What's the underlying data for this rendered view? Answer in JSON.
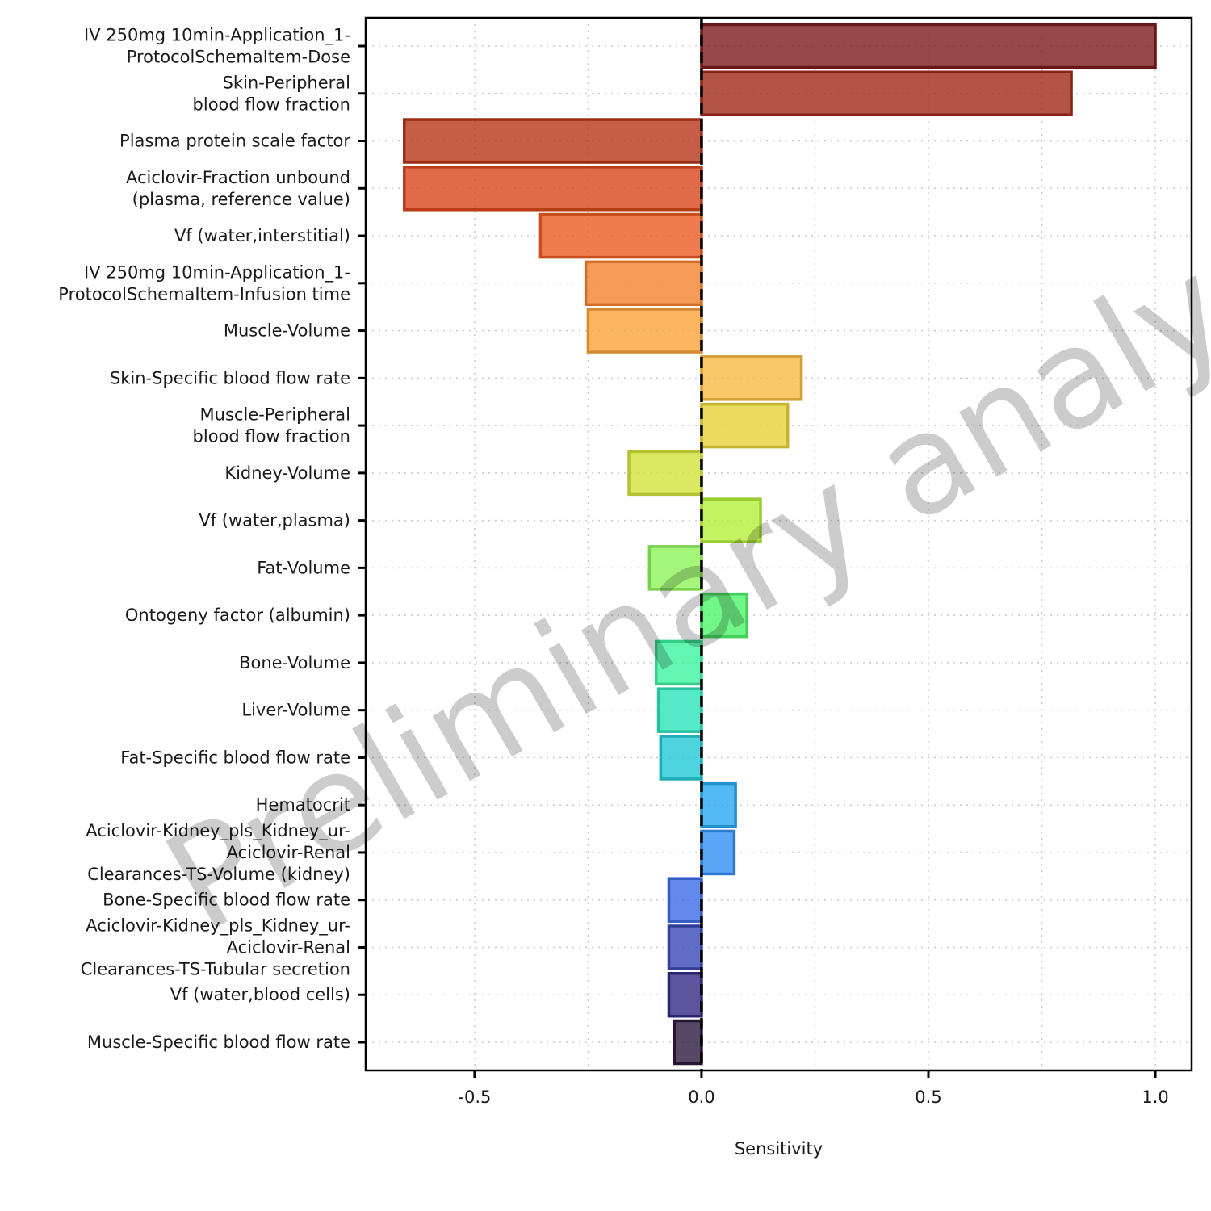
{
  "watermark": "Preliminary analysis",
  "chart_data": {
    "type": "bar",
    "orientation": "horizontal",
    "xlabel": "Sensitivity",
    "ylabel": "",
    "xlim": [
      -0.74,
      1.08
    ],
    "xticks": [
      -0.5,
      0.0,
      0.5,
      1.0
    ],
    "xtick_labels": [
      "-0.5",
      "0.0",
      "0.5",
      "1.0"
    ],
    "grid": "dotted",
    "zero_line": "dashed",
    "bars": [
      {
        "label": [
          "IV 250mg 10min-Application_1-",
          "ProtocolSchemaItem-Dose"
        ],
        "value": 1.0,
        "color": "#7a1a1a"
      },
      {
        "label": [
          "Skin-Peripheral",
          "blood flow fraction"
        ],
        "value": 0.815,
        "color": "#a0281a"
      },
      {
        "label": [
          "Plasma protein scale factor"
        ],
        "value": -0.655,
        "color": "#b83418"
      },
      {
        "label": [
          "Aciclovir-Fraction unbound",
          "(plasma, reference value)"
        ],
        "value": -0.655,
        "color": "#d9461a"
      },
      {
        "label": [
          "Vf (water,interstitial)"
        ],
        "value": -0.355,
        "color": "#ec5a22"
      },
      {
        "label": [
          "IV 250mg 10min-Application_1-",
          "ProtocolSchemaItem-Infusion time"
        ],
        "value": -0.255,
        "color": "#f5822f"
      },
      {
        "label": [
          "Muscle-Volume"
        ],
        "value": -0.25,
        "color": "#fba23a"
      },
      {
        "label": [
          "Skin-Specific blood flow rate"
        ],
        "value": 0.22,
        "color": "#f8bb43"
      },
      {
        "label": [
          "Muscle-Peripheral",
          "blood flow fraction"
        ],
        "value": 0.19,
        "color": "#e9d23a"
      },
      {
        "label": [
          "Kidney-Volume"
        ],
        "value": -0.16,
        "color": "#d1e43a"
      },
      {
        "label": [
          "Vf (water,plasma)"
        ],
        "value": 0.13,
        "color": "#b5f03a"
      },
      {
        "label": [
          "Fat-Volume"
        ],
        "value": -0.115,
        "color": "#8ef55a"
      },
      {
        "label": [
          "Ontogeny factor (albumin)"
        ],
        "value": 0.1,
        "color": "#4ef46a"
      },
      {
        "label": [
          "Bone-Volume"
        ],
        "value": -0.1,
        "color": "#3cf4a0"
      },
      {
        "label": [
          "Liver-Volume"
        ],
        "value": -0.095,
        "color": "#2ce3b9"
      },
      {
        "label": [
          "Fat-Specific blood flow rate"
        ],
        "value": -0.09,
        "color": "#22c9d6"
      },
      {
        "label": [
          "Hematocrit"
        ],
        "value": 0.075,
        "color": "#29a9f2"
      },
      {
        "label": [
          "Aciclovir-Kidney_pls_Kidney_ur-",
          "Aciclovir-Renal",
          "Clearances-TS-Volume (kidney)"
        ],
        "value": 0.072,
        "color": "#3390f4"
      },
      {
        "label": [
          "Bone-Specific blood flow rate"
        ],
        "value": -0.072,
        "color": "#3c6ce8"
      },
      {
        "label": [
          "Aciclovir-Kidney_pls_Kidney_ur-",
          "Aciclovir-Renal",
          "Clearances-TS-Tubular secretion"
        ],
        "value": -0.072,
        "color": "#3a49b5"
      },
      {
        "label": [
          "Vf (water,blood cells)"
        ],
        "value": -0.072,
        "color": "#322b85"
      },
      {
        "label": [
          "Muscle-Specific blood flow rate"
        ],
        "value": -0.06,
        "color": "#2d1a40"
      }
    ]
  }
}
